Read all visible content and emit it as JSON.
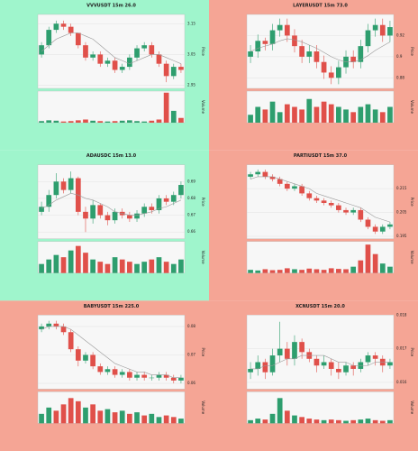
{
  "chart_data": [
    {
      "type": "candlestick",
      "title": "VVVUSDT 15m 26.0",
      "background": "#9ff5cc",
      "up_color": "#2e9e6e",
      "down_color": "#e0504a",
      "ma_color": "#999999",
      "ylabel": "Price",
      "y2label": "Volume",
      "ylim": [
        2.94,
        3.18
      ],
      "yticks": [
        2.95,
        3.05,
        3.15
      ],
      "volume_ylim": [
        0,
        400000
      ],
      "open": [
        3.05,
        3.08,
        3.13,
        3.15,
        3.14,
        3.12,
        3.08,
        3.04,
        3.05,
        3.02,
        3.03,
        3.0,
        3.01,
        3.04,
        3.07,
        3.08,
        3.05,
        3.02,
        2.98,
        3.01
      ],
      "high": [
        3.09,
        3.14,
        3.16,
        3.16,
        3.15,
        3.12,
        3.09,
        3.06,
        3.06,
        3.04,
        3.04,
        3.02,
        3.05,
        3.08,
        3.09,
        3.09,
        3.06,
        3.03,
        3.02,
        3.02
      ],
      "low": [
        3.04,
        3.07,
        3.12,
        3.13,
        3.11,
        3.07,
        3.03,
        3.03,
        3.01,
        3.01,
        2.99,
        2.99,
        3.0,
        3.03,
        3.06,
        3.04,
        3.01,
        2.96,
        2.97,
        2.99
      ],
      "close": [
        3.08,
        3.13,
        3.15,
        3.14,
        3.12,
        3.08,
        3.04,
        3.05,
        3.02,
        3.03,
        3.0,
        3.01,
        3.04,
        3.07,
        3.08,
        3.05,
        3.02,
        2.98,
        3.01,
        3.0
      ],
      "volume": [
        20000,
        30000,
        25000,
        15000,
        20000,
        30000,
        40000,
        25000,
        20000,
        15000,
        20000,
        25000,
        30000,
        20000,
        15000,
        25000,
        40000,
        380000,
        150000,
        60000
      ],
      "ma": [
        3.06,
        3.08,
        3.1,
        3.11,
        3.12,
        3.12,
        3.11,
        3.1,
        3.08,
        3.06,
        3.04,
        3.03,
        3.02,
        3.03,
        3.04,
        3.05,
        3.05,
        3.04,
        3.03,
        3.02
      ]
    },
    {
      "type": "candlestick",
      "title": "LAYERUSDT 15m 73.0",
      "background": "#f5a595",
      "up_color": "#2e9e6e",
      "down_color": "#e0504a",
      "ma_color": "#999999",
      "ylabel": "Price",
      "y2label": "Volume",
      "ylim": [
        0.87,
        0.94
      ],
      "yticks": [
        0.88,
        0.9,
        0.92
      ],
      "volume_ylim": [
        0,
        60000
      ],
      "open": [
        0.9,
        0.905,
        0.915,
        0.912,
        0.925,
        0.93,
        0.92,
        0.91,
        0.9,
        0.905,
        0.895,
        0.885,
        0.88,
        0.89,
        0.9,
        0.895,
        0.91,
        0.925,
        0.93,
        0.92
      ],
      "high": [
        0.911,
        0.921,
        0.918,
        0.931,
        0.936,
        0.936,
        0.926,
        0.916,
        0.911,
        0.911,
        0.901,
        0.891,
        0.896,
        0.906,
        0.906,
        0.916,
        0.931,
        0.936,
        0.936,
        0.934
      ],
      "low": [
        0.894,
        0.899,
        0.906,
        0.906,
        0.919,
        0.914,
        0.904,
        0.894,
        0.894,
        0.889,
        0.879,
        0.874,
        0.874,
        0.884,
        0.889,
        0.889,
        0.904,
        0.919,
        0.914,
        0.914
      ],
      "close": [
        0.905,
        0.915,
        0.912,
        0.925,
        0.93,
        0.92,
        0.91,
        0.9,
        0.905,
        0.895,
        0.885,
        0.88,
        0.89,
        0.9,
        0.895,
        0.91,
        0.925,
        0.93,
        0.92,
        0.928
      ],
      "volume": [
        15000,
        30000,
        25000,
        40000,
        20000,
        35000,
        30000,
        25000,
        45000,
        30000,
        40000,
        35000,
        30000,
        25000,
        20000,
        30000,
        35000,
        25000,
        20000,
        30000
      ],
      "ma": [
        0.905,
        0.908,
        0.91,
        0.912,
        0.915,
        0.917,
        0.916,
        0.914,
        0.911,
        0.908,
        0.904,
        0.9,
        0.897,
        0.895,
        0.895,
        0.897,
        0.901,
        0.906,
        0.91,
        0.914
      ]
    },
    {
      "type": "candlestick",
      "title": "ADAUSDC 15m 13.0",
      "background": "#9ff5cc",
      "up_color": "#2e9e6e",
      "down_color": "#e0504a",
      "ma_color": "#999999",
      "ylabel": "Price",
      "y2label": "Volume",
      "ylim": [
        0.656,
        0.7
      ],
      "yticks": [
        0.66,
        0.67,
        0.68,
        0.69
      ],
      "volume_ylim": [
        0,
        70000
      ],
      "open": [
        0.672,
        0.675,
        0.682,
        0.69,
        0.685,
        0.692,
        0.672,
        0.668,
        0.676,
        0.67,
        0.667,
        0.672,
        0.67,
        0.668,
        0.671,
        0.675,
        0.673,
        0.68,
        0.678,
        0.682
      ],
      "high": [
        0.678,
        0.685,
        0.695,
        0.692,
        0.696,
        0.693,
        0.675,
        0.679,
        0.677,
        0.672,
        0.674,
        0.674,
        0.672,
        0.673,
        0.677,
        0.677,
        0.682,
        0.682,
        0.684,
        0.69
      ],
      "low": [
        0.67,
        0.672,
        0.68,
        0.683,
        0.683,
        0.67,
        0.66,
        0.665,
        0.668,
        0.664,
        0.665,
        0.668,
        0.666,
        0.666,
        0.669,
        0.671,
        0.671,
        0.676,
        0.676,
        0.68
      ],
      "close": [
        0.675,
        0.682,
        0.69,
        0.685,
        0.692,
        0.672,
        0.668,
        0.676,
        0.67,
        0.667,
        0.672,
        0.67,
        0.668,
        0.671,
        0.675,
        0.673,
        0.68,
        0.678,
        0.682,
        0.688
      ],
      "volume": [
        20000,
        30000,
        40000,
        35000,
        50000,
        60000,
        45000,
        30000,
        25000,
        20000,
        35000,
        30000,
        25000,
        20000,
        25000,
        30000,
        35000,
        25000,
        20000,
        30000
      ],
      "ma": [
        0.674,
        0.676,
        0.679,
        0.681,
        0.683,
        0.682,
        0.68,
        0.679,
        0.677,
        0.675,
        0.672,
        0.671,
        0.67,
        0.67,
        0.671,
        0.672,
        0.674,
        0.675,
        0.677,
        0.679
      ]
    },
    {
      "type": "candlestick",
      "title": "PARTIUSDT 15m 37.0",
      "background": "#f5a595",
      "up_color": "#2e9e6e",
      "down_color": "#e0504a",
      "ma_color": "#999999",
      "ylabel": "Price",
      "y2label": "Volume",
      "ylim": [
        0.194,
        0.225
      ],
      "yticks": [
        0.195,
        0.205,
        0.215
      ],
      "volume_ylim": [
        0,
        100000
      ],
      "open": [
        0.22,
        0.221,
        0.222,
        0.22,
        0.219,
        0.217,
        0.215,
        0.216,
        0.213,
        0.211,
        0.21,
        0.209,
        0.208,
        0.206,
        0.205,
        0.206,
        0.202,
        0.199,
        0.197,
        0.199
      ],
      "high": [
        0.222,
        0.223,
        0.223,
        0.221,
        0.22,
        0.218,
        0.217,
        0.217,
        0.214,
        0.212,
        0.211,
        0.21,
        0.209,
        0.207,
        0.207,
        0.207,
        0.203,
        0.2,
        0.2,
        0.201
      ],
      "low": [
        0.219,
        0.22,
        0.219,
        0.218,
        0.216,
        0.214,
        0.214,
        0.212,
        0.21,
        0.209,
        0.208,
        0.207,
        0.205,
        0.204,
        0.204,
        0.201,
        0.198,
        0.196,
        0.196,
        0.198
      ],
      "close": [
        0.221,
        0.222,
        0.22,
        0.219,
        0.217,
        0.215,
        0.216,
        0.213,
        0.211,
        0.21,
        0.209,
        0.208,
        0.206,
        0.205,
        0.206,
        0.202,
        0.199,
        0.197,
        0.199,
        0.2
      ],
      "volume": [
        10000,
        8000,
        12000,
        9000,
        10000,
        15000,
        12000,
        10000,
        14000,
        12000,
        10000,
        15000,
        13000,
        12000,
        20000,
        40000,
        90000,
        60000,
        30000,
        20000
      ],
      "ma": [
        0.219,
        0.22,
        0.22,
        0.22,
        0.219,
        0.218,
        0.217,
        0.216,
        0.215,
        0.213,
        0.212,
        0.211,
        0.21,
        0.209,
        0.208,
        0.207,
        0.205,
        0.203,
        0.202,
        0.201
      ]
    },
    {
      "type": "candlestick",
      "title": "BABYUSDT 15m 225.0",
      "background": "#f5a595",
      "up_color": "#2e9e6e",
      "down_color": "#e0504a",
      "ma_color": "#999999",
      "ylabel": "Price",
      "y2label": "Volume",
      "ylim": [
        0.058,
        0.084
      ],
      "yticks": [
        0.06,
        0.07,
        0.08
      ],
      "volume_ylim": [
        0,
        100000
      ],
      "open": [
        0.079,
        0.08,
        0.081,
        0.08,
        0.078,
        0.072,
        0.068,
        0.07,
        0.066,
        0.064,
        0.065,
        0.063,
        0.064,
        0.062,
        0.063,
        0.062,
        0.062,
        0.063,
        0.062,
        0.061
      ],
      "high": [
        0.081,
        0.082,
        0.082,
        0.081,
        0.079,
        0.073,
        0.071,
        0.071,
        0.067,
        0.066,
        0.066,
        0.065,
        0.065,
        0.064,
        0.064,
        0.063,
        0.064,
        0.064,
        0.063,
        0.063
      ],
      "low": [
        0.078,
        0.079,
        0.079,
        0.077,
        0.071,
        0.066,
        0.067,
        0.065,
        0.063,
        0.063,
        0.062,
        0.062,
        0.061,
        0.061,
        0.061,
        0.061,
        0.061,
        0.061,
        0.06,
        0.06
      ],
      "close": [
        0.08,
        0.081,
        0.08,
        0.078,
        0.072,
        0.068,
        0.07,
        0.066,
        0.064,
        0.065,
        0.063,
        0.064,
        0.062,
        0.063,
        0.062,
        0.062,
        0.063,
        0.062,
        0.061,
        0.062
      ],
      "volume": [
        30000,
        50000,
        40000,
        60000,
        80000,
        70000,
        50000,
        60000,
        40000,
        45000,
        35000,
        40000,
        30000,
        35000,
        25000,
        30000,
        20000,
        25000,
        20000,
        15000
      ],
      "ma": [
        0.079,
        0.08,
        0.08,
        0.08,
        0.079,
        0.077,
        0.075,
        0.073,
        0.071,
        0.069,
        0.067,
        0.066,
        0.065,
        0.064,
        0.064,
        0.063,
        0.063,
        0.063,
        0.062,
        0.062
      ]
    },
    {
      "type": "candlestick",
      "title": "XCNUSDT 15m 20.0",
      "background": "#f5a595",
      "up_color": "#2e9e6e",
      "down_color": "#e0504a",
      "ma_color": "#999999",
      "ylabel": "Price",
      "y2label": "Volume",
      "ylim": [
        0.0158,
        0.018
      ],
      "yticks": [
        0.016,
        0.017,
        0.018
      ],
      "volume_ylim": [
        0,
        100000
      ],
      "open": [
        0.0163,
        0.0164,
        0.0166,
        0.0163,
        0.0168,
        0.017,
        0.0167,
        0.0172,
        0.0169,
        0.0167,
        0.0165,
        0.0166,
        0.0164,
        0.0163,
        0.0165,
        0.0164,
        0.0166,
        0.0168,
        0.0167,
        0.0165
      ],
      "high": [
        0.0166,
        0.0168,
        0.0167,
        0.017,
        0.0178,
        0.0172,
        0.0174,
        0.0173,
        0.017,
        0.0168,
        0.0168,
        0.0167,
        0.0166,
        0.0166,
        0.0166,
        0.0167,
        0.0169,
        0.0169,
        0.0168,
        0.0167
      ],
      "low": [
        0.0161,
        0.0162,
        0.0161,
        0.0162,
        0.0166,
        0.0165,
        0.0165,
        0.0167,
        0.0166,
        0.0163,
        0.0164,
        0.0162,
        0.0161,
        0.0162,
        0.0162,
        0.0163,
        0.0165,
        0.0165,
        0.0163,
        0.0164
      ],
      "close": [
        0.0164,
        0.0166,
        0.0163,
        0.0168,
        0.017,
        0.0167,
        0.0172,
        0.0169,
        0.0167,
        0.0165,
        0.0166,
        0.0164,
        0.0163,
        0.0165,
        0.0164,
        0.0166,
        0.0168,
        0.0167,
        0.0165,
        0.0166
      ],
      "volume": [
        10000,
        15000,
        12000,
        30000,
        80000,
        40000,
        25000,
        20000,
        15000,
        12000,
        10000,
        12000,
        10000,
        8000,
        10000,
        12000,
        15000,
        10000,
        8000,
        10000
      ],
      "ma": [
        0.0164,
        0.0164,
        0.0165,
        0.0165,
        0.0166,
        0.0167,
        0.0167,
        0.0168,
        0.0168,
        0.0168,
        0.0168,
        0.0167,
        0.0166,
        0.0166,
        0.0165,
        0.0165,
        0.0165,
        0.0166,
        0.0166,
        0.0166
      ]
    }
  ]
}
